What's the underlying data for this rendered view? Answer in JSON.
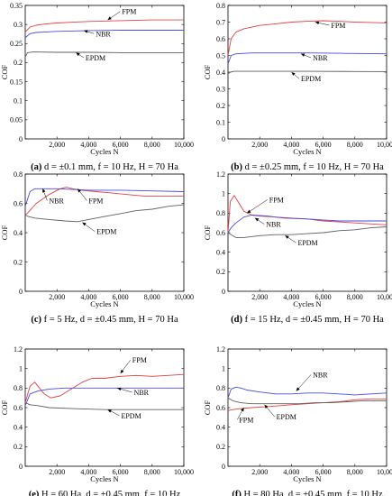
{
  "figure": {
    "ylabel": "COF",
    "xlabel": "Cycles N",
    "x_tick_labels": [
      "2,000",
      "4,000",
      "6,000",
      "8,000",
      "10,000"
    ]
  },
  "chart_data": [
    {
      "id": "a",
      "type": "line",
      "caption": {
        "letter": "(a)",
        "text": "d = ±0.1 mm, f = 10 Hz, H = 70 Ha"
      },
      "xlabel": "Cycles N",
      "ylabel": "COF",
      "xlim": [
        0,
        10000
      ],
      "ylim": [
        0,
        0.35
      ],
      "y_ticks": [
        "0",
        "0.05",
        "0.1",
        "0.15",
        "0.2",
        "0.25",
        "0.3",
        "0.35"
      ],
      "x_ticks": [
        2000,
        4000,
        6000,
        8000,
        10000
      ],
      "series": [
        {
          "name": "FPM",
          "color": "#e84040",
          "x": [
            0,
            300,
            700,
            1200,
            2000,
            3000,
            4000,
            6000,
            8000,
            10000
          ],
          "y": [
            0.28,
            0.293,
            0.298,
            0.301,
            0.304,
            0.306,
            0.308,
            0.31,
            0.312,
            0.312
          ]
        },
        {
          "name": "NBR",
          "color": "#4a4ae0",
          "x": [
            0,
            300,
            700,
            1200,
            2000,
            4000,
            6000,
            8000,
            10000
          ],
          "y": [
            0.265,
            0.276,
            0.279,
            0.28,
            0.282,
            0.284,
            0.285,
            0.285,
            0.285
          ]
        },
        {
          "name": "EPDM",
          "color": "#606060",
          "x": [
            0,
            150,
            500,
            2000,
            4000,
            6000,
            8000,
            10000
          ],
          "y": [
            0.215,
            0.226,
            0.228,
            0.227,
            0.227,
            0.226,
            0.226,
            0.226
          ]
        }
      ],
      "annotations": [
        {
          "text": "FPM",
          "x": 6100,
          "y": 0.327,
          "tip_x": 5200,
          "tip_y": 0.312
        },
        {
          "text": "NBR",
          "x": 4450,
          "y": 0.269,
          "tip_x": 3700,
          "tip_y": 0.284
        },
        {
          "text": "EPDM",
          "x": 3800,
          "y": 0.206,
          "tip_x": 3200,
          "tip_y": 0.226
        }
      ]
    },
    {
      "id": "b",
      "type": "line",
      "caption": {
        "letter": "(b)",
        "text": "d = ±0.25 mm, f = 10 Hz, H = 70 Ha"
      },
      "xlabel": "Cycles N",
      "ylabel": "COF",
      "xlim": [
        0,
        10000
      ],
      "ylim": [
        0,
        0.8
      ],
      "y_ticks": [
        "0",
        "0.1",
        "0.2",
        "0.3",
        "0.4",
        "0.5",
        "0.6",
        "0.7",
        "0.8"
      ],
      "x_ticks": [
        2000,
        4000,
        6000,
        8000,
        10000
      ],
      "series": [
        {
          "name": "FPM",
          "color": "#e84040",
          "x": [
            0,
            200,
            500,
            1000,
            2000,
            3000,
            4000,
            5000,
            6000,
            7000,
            8000,
            9000,
            10000
          ],
          "y": [
            0.5,
            0.6,
            0.64,
            0.66,
            0.68,
            0.69,
            0.7,
            0.705,
            0.708,
            0.705,
            0.7,
            0.698,
            0.695
          ]
        },
        {
          "name": "NBR",
          "color": "#4a4ae0",
          "x": [
            0,
            200,
            500,
            1500,
            3000,
            5000,
            7000,
            10000
          ],
          "y": [
            0.45,
            0.5,
            0.51,
            0.515,
            0.515,
            0.515,
            0.513,
            0.51
          ]
        },
        {
          "name": "EPDM",
          "color": "#606060",
          "x": [
            0,
            150,
            400,
            2000,
            5000,
            8000,
            10000
          ],
          "y": [
            0.39,
            0.4,
            0.405,
            0.405,
            0.405,
            0.404,
            0.403
          ]
        }
      ],
      "annotations": [
        {
          "text": "FPM",
          "x": 6500,
          "y": 0.665,
          "tip_x": 5500,
          "tip_y": 0.7
        },
        {
          "text": "NBR",
          "x": 5350,
          "y": 0.47,
          "tip_x": 4600,
          "tip_y": 0.51
        },
        {
          "text": "EPDM",
          "x": 4600,
          "y": 0.345,
          "tip_x": 4000,
          "tip_y": 0.4
        }
      ]
    },
    {
      "id": "c",
      "type": "line",
      "caption": {
        "letter": "(c)",
        "text": "f = 5 Hz, d = ±0.45 mm, H = 70 Ha"
      },
      "xlabel": "Cycles N",
      "ylabel": "COF",
      "xlim": [
        0,
        10000
      ],
      "ylim": [
        0,
        0.8
      ],
      "y_ticks": [
        "0",
        "0.2",
        "0.4",
        "0.6",
        "0.8"
      ],
      "x_ticks": [
        2000,
        4000,
        6000,
        8000,
        10000
      ],
      "series": [
        {
          "name": "FPM",
          "color": "#e84040",
          "x": [
            0,
            200,
            700,
            1500,
            2200,
            2600,
            3000,
            3500,
            4500,
            5500,
            6500,
            7500,
            8500,
            10000
          ],
          "y": [
            0.52,
            0.54,
            0.6,
            0.66,
            0.7,
            0.71,
            0.7,
            0.69,
            0.68,
            0.67,
            0.66,
            0.65,
            0.65,
            0.65
          ]
        },
        {
          "name": "NBR",
          "color": "#4a4ae0",
          "x": [
            0,
            300,
            600,
            1000,
            2000,
            3000,
            4000,
            5000,
            6000,
            8000,
            10000
          ],
          "y": [
            0.58,
            0.68,
            0.7,
            0.7,
            0.7,
            0.695,
            0.69,
            0.69,
            0.69,
            0.685,
            0.68
          ]
        },
        {
          "name": "EPDM",
          "color": "#606060",
          "x": [
            0,
            200,
            600,
            1000,
            1500,
            2500,
            3300,
            4000,
            5000,
            6000,
            7000,
            8000,
            9000,
            10000
          ],
          "y": [
            0.52,
            0.51,
            0.5,
            0.495,
            0.49,
            0.48,
            0.475,
            0.49,
            0.51,
            0.53,
            0.55,
            0.56,
            0.58,
            0.59
          ]
        }
      ],
      "annotations": [
        {
          "text": "NBR",
          "x": 1500,
          "y": 0.6,
          "tip_x": 1100,
          "tip_y": 0.7
        },
        {
          "text": "FPM",
          "x": 4000,
          "y": 0.6,
          "tip_x": 3300,
          "tip_y": 0.7
        },
        {
          "text": "EPDM",
          "x": 4500,
          "y": 0.39,
          "tip_x": 3600,
          "tip_y": 0.47
        }
      ]
    },
    {
      "id": "d",
      "type": "line",
      "caption": {
        "letter": "(d)",
        "text": "f = 15 Hz, d = ±0.45 mm, H = 70 Ha"
      },
      "xlabel": "Cycles N",
      "ylabel": "COF",
      "xlim": [
        0,
        10000
      ],
      "ylim": [
        0,
        1.2
      ],
      "y_ticks": [
        "0",
        "0.2",
        "0.4",
        "0.6",
        "0.8",
        "1",
        "1.2"
      ],
      "x_ticks": [
        2000,
        4000,
        6000,
        8000,
        10000
      ],
      "series": [
        {
          "name": "FPM",
          "color": "#e84040",
          "x": [
            0,
            150,
            400,
            700,
            1000,
            1500,
            2000,
            3000,
            4000,
            5000,
            6000,
            7000,
            8000,
            10000
          ],
          "y": [
            0.6,
            0.92,
            0.98,
            0.9,
            0.82,
            0.78,
            0.77,
            0.76,
            0.75,
            0.74,
            0.72,
            0.71,
            0.7,
            0.68
          ]
        },
        {
          "name": "NBR",
          "color": "#4a4ae0",
          "x": [
            0,
            200,
            500,
            1000,
            1500,
            2500,
            3500,
            5000,
            6000,
            7000,
            8000,
            9000,
            10000
          ],
          "y": [
            0.6,
            0.65,
            0.7,
            0.76,
            0.78,
            0.77,
            0.75,
            0.74,
            0.73,
            0.72,
            0.72,
            0.72,
            0.72
          ]
        },
        {
          "name": "EPDM",
          "color": "#606060",
          "x": [
            0,
            200,
            500,
            1000,
            2000,
            3000,
            4000,
            5000,
            6000,
            7000,
            8000,
            9000,
            10000
          ],
          "y": [
            0.6,
            0.58,
            0.55,
            0.55,
            0.57,
            0.58,
            0.58,
            0.59,
            0.6,
            0.62,
            0.63,
            0.65,
            0.66
          ]
        }
      ],
      "annotations": [
        {
          "text": "FPM",
          "x": 2600,
          "y": 0.91,
          "tip_x": 1200,
          "tip_y": 0.8
        },
        {
          "text": "NBR",
          "x": 2400,
          "y": 0.66,
          "tip_x": 1700,
          "tip_y": 0.75
        },
        {
          "text": "EPDM",
          "x": 4400,
          "y": 0.47,
          "tip_x": 3600,
          "tip_y": 0.57
        }
      ]
    },
    {
      "id": "e",
      "type": "line",
      "caption": {
        "letter": "(e)",
        "text": "H = 60 Ha, d = ±0.45 mm, f = 10 Hz"
      },
      "xlabel": "Cycles N",
      "ylabel": "COF",
      "xlim": [
        0,
        10000
      ],
      "ylim": [
        0,
        1.2
      ],
      "y_ticks": [
        "0",
        "0.2",
        "0.4",
        "0.6",
        "0.8",
        "1",
        "1.2"
      ],
      "x_ticks": [
        2000,
        4000,
        6000,
        8000,
        10000
      ],
      "series": [
        {
          "name": "FPM",
          "color": "#e84040",
          "x": [
            0,
            300,
            600,
            900,
            1200,
            1600,
            2200,
            3000,
            3600,
            4200,
            5000,
            6000,
            7000,
            8000,
            9000,
            10000
          ],
          "y": [
            0.65,
            0.82,
            0.86,
            0.8,
            0.74,
            0.7,
            0.72,
            0.8,
            0.86,
            0.9,
            0.9,
            0.92,
            0.93,
            0.92,
            0.93,
            0.94
          ]
        },
        {
          "name": "NBR",
          "color": "#4a4ae0",
          "x": [
            0,
            300,
            800,
            1500,
            2500,
            4000,
            6000,
            8000,
            10000
          ],
          "y": [
            0.62,
            0.74,
            0.77,
            0.79,
            0.8,
            0.8,
            0.8,
            0.8,
            0.8
          ]
        },
        {
          "name": "EPDM",
          "color": "#606060",
          "x": [
            0,
            300,
            800,
            1500,
            3000,
            5000,
            7000,
            10000
          ],
          "y": [
            0.65,
            0.63,
            0.62,
            0.6,
            0.59,
            0.58,
            0.58,
            0.58
          ]
        }
      ],
      "annotations": [
        {
          "text": "FPM",
          "x": 6750,
          "y": 1.06,
          "tip_x": 6000,
          "tip_y": 0.95
        },
        {
          "text": "NBR",
          "x": 6850,
          "y": 0.73,
          "tip_x": 5800,
          "tip_y": 0.8
        },
        {
          "text": "EPDM",
          "x": 6050,
          "y": 0.49,
          "tip_x": 5200,
          "tip_y": 0.58
        }
      ]
    },
    {
      "id": "f",
      "type": "line",
      "caption": {
        "letter": "(f)",
        "text": "H = 80 Ha, d = ±0.45 mm, f = 10 Hz"
      },
      "xlabel": "Cycles N",
      "ylabel": "COF",
      "xlim": [
        0,
        10000
      ],
      "ylim": [
        0,
        1.2
      ],
      "y_ticks": [
        "0",
        "0.2",
        "0.4",
        "0.6",
        "0.8",
        "1",
        "1.2"
      ],
      "x_ticks": [
        2000,
        4000,
        6000,
        8000,
        10000
      ],
      "series": [
        {
          "name": "FPM",
          "color": "#e84040",
          "x": [
            0,
            300,
            800,
            1500,
            2500,
            4000,
            5000,
            6000,
            7000,
            8000,
            9000,
            10000
          ],
          "y": [
            0.57,
            0.58,
            0.59,
            0.6,
            0.61,
            0.63,
            0.64,
            0.65,
            0.66,
            0.68,
            0.69,
            0.69
          ]
        },
        {
          "name": "NBR",
          "color": "#4a4ae0",
          "x": [
            0,
            200,
            500,
            800,
            1200,
            2000,
            3000,
            4000,
            5000,
            6000,
            7000,
            8000,
            9000,
            10000
          ],
          "y": [
            0.7,
            0.79,
            0.81,
            0.8,
            0.78,
            0.76,
            0.74,
            0.74,
            0.75,
            0.75,
            0.74,
            0.73,
            0.74,
            0.75
          ]
        },
        {
          "name": "EPDM",
          "color": "#606060",
          "x": [
            0,
            300,
            800,
            1500,
            2500,
            3500,
            4500,
            5500,
            6500,
            7500,
            8500,
            10000
          ],
          "y": [
            0.7,
            0.67,
            0.65,
            0.64,
            0.64,
            0.64,
            0.64,
            0.65,
            0.65,
            0.66,
            0.67,
            0.67
          ]
        }
      ],
      "annotations": [
        {
          "text": "NBR",
          "x": 5350,
          "y": 0.91,
          "tip_x": 4300,
          "tip_y": 0.77
        },
        {
          "text": "FPM",
          "x": 700,
          "y": 0.45,
          "tip_x": 1000,
          "tip_y": 0.6
        },
        {
          "text": "EPDM",
          "x": 3050,
          "y": 0.48,
          "tip_x": 2300,
          "tip_y": 0.63
        }
      ]
    }
  ]
}
